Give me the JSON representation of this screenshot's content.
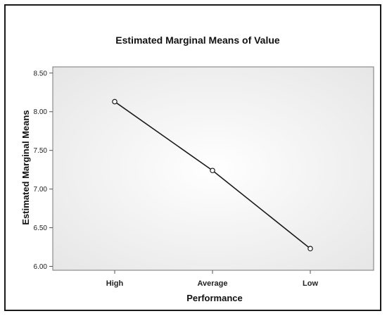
{
  "chart_data": {
    "type": "line",
    "title": "Estimated Marginal Means of Value",
    "xlabel": "Performance",
    "ylabel": "Estimated Marginal Means",
    "categories": [
      "High",
      "Average",
      "Low"
    ],
    "values": [
      8.13,
      7.24,
      6.23
    ],
    "ylim": [
      5.95,
      8.58
    ],
    "yticks": [
      "6.00",
      "6.50",
      "7.00",
      "7.50",
      "8.00",
      "8.50"
    ],
    "grid": false,
    "markers": "open-circle",
    "line_color": "#1a1a1a",
    "plot_background": "#f2f2f2"
  }
}
